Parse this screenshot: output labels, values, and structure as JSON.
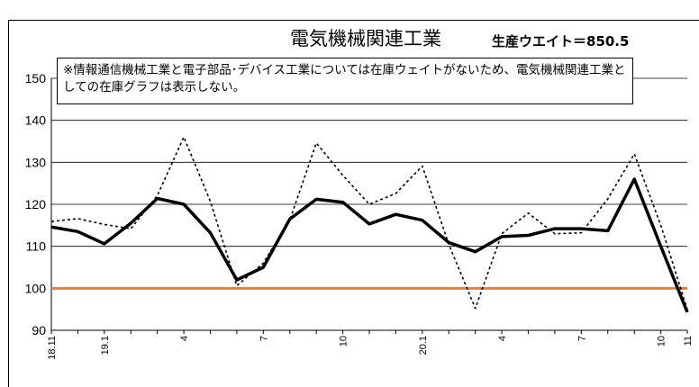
{
  "chart_data": {
    "type": "line",
    "title": "電気機械関連工業",
    "weight_label": "生産ウエイト＝850.5",
    "note": "※情報通信機械工業と電子部品･デバイス工業については在庫ウェイトがないため、電気機械関連工業としての在庫グラフは表示しない。",
    "xlabel": "",
    "ylabel": "",
    "ylim": [
      90,
      150
    ],
    "yticks": [
      90,
      100,
      110,
      120,
      130,
      140,
      150
    ],
    "x_tick_labels": [
      "18.11",
      "",
      "19.1",
      "",
      "",
      "4",
      "",
      "",
      "7",
      "",
      "",
      "10",
      "",
      "",
      "20.1",
      "",
      "",
      "4",
      "",
      "",
      "7",
      "",
      "",
      "10",
      "11"
    ],
    "grid": true,
    "legend": "none",
    "reference_line": {
      "value": 100,
      "color": "#ED7D31"
    },
    "series": [
      {
        "style": "solid",
        "color": "#000000",
        "values": [
          114.6,
          113.5,
          110.6,
          115.5,
          121.4,
          120.0,
          113.2,
          102.0,
          105.0,
          116.5,
          121.2,
          120.5,
          115.3,
          117.6,
          116.2,
          110.9,
          108.7,
          112.3,
          112.6,
          114.2,
          114.2,
          113.7,
          126.0,
          110.0,
          94.3
        ]
      },
      {
        "style": "dotted",
        "color": "#000000",
        "values": [
          115.9,
          116.6,
          115.2,
          114.2,
          122.1,
          136.0,
          120.7,
          100.6,
          106.0,
          116.3,
          134.6,
          126.9,
          120.0,
          122.6,
          129.1,
          110.4,
          95.2,
          113.0,
          117.9,
          113.0,
          113.2,
          121.3,
          132.0,
          115.0,
          95.0
        ]
      }
    ]
  }
}
